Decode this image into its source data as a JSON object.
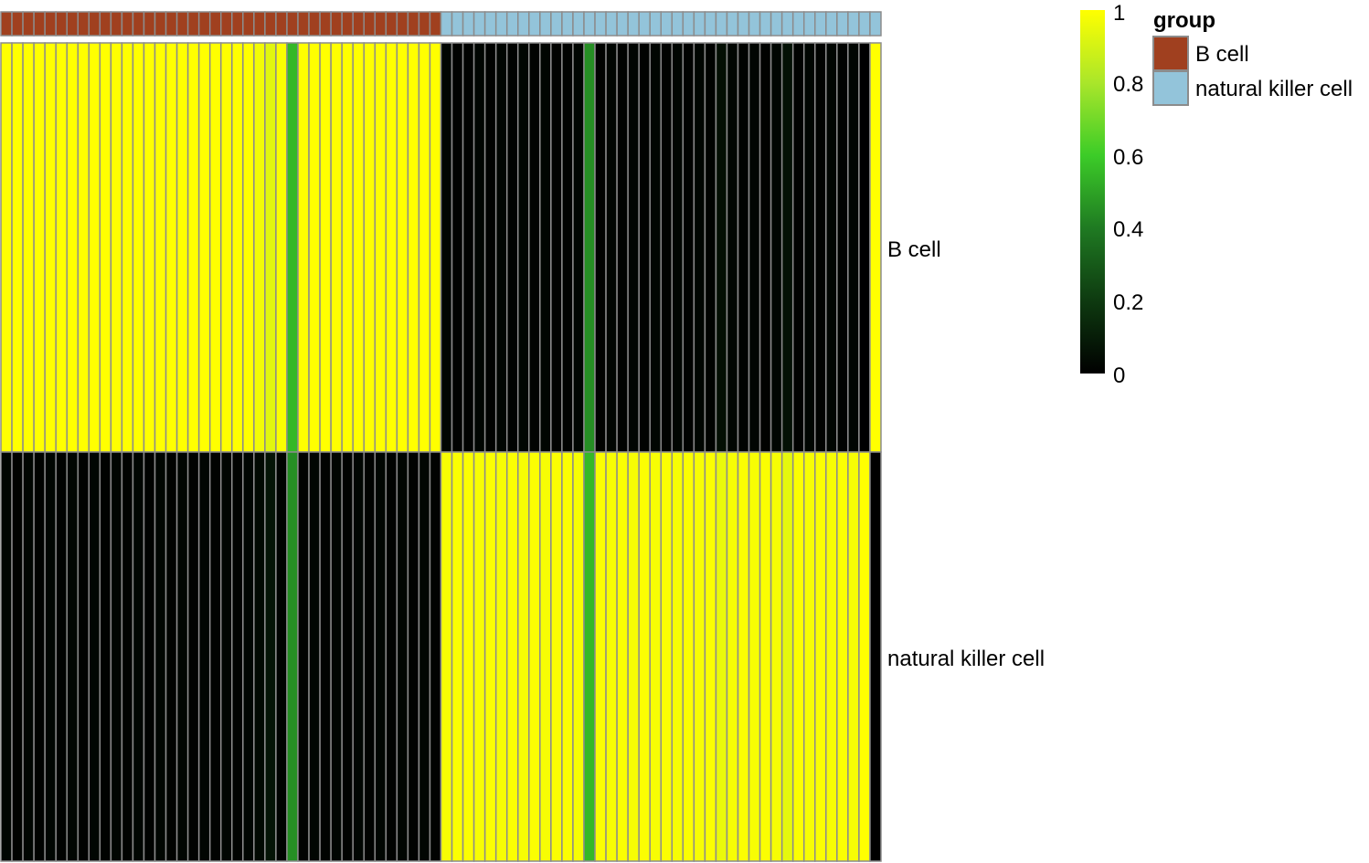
{
  "chart_data": {
    "type": "heatmap",
    "rows": [
      "B cell",
      "natural killer cell"
    ],
    "columns": {
      "count": 80,
      "group": [
        "B cell",
        "B cell",
        "B cell",
        "B cell",
        "B cell",
        "B cell",
        "B cell",
        "B cell",
        "B cell",
        "B cell",
        "B cell",
        "B cell",
        "B cell",
        "B cell",
        "B cell",
        "B cell",
        "B cell",
        "B cell",
        "B cell",
        "B cell",
        "B cell",
        "B cell",
        "B cell",
        "B cell",
        "B cell",
        "B cell",
        "B cell",
        "B cell",
        "B cell",
        "B cell",
        "B cell",
        "B cell",
        "B cell",
        "B cell",
        "B cell",
        "B cell",
        "B cell",
        "B cell",
        "B cell",
        "B cell",
        "natural killer cell",
        "natural killer cell",
        "natural killer cell",
        "natural killer cell",
        "natural killer cell",
        "natural killer cell",
        "natural killer cell",
        "natural killer cell",
        "natural killer cell",
        "natural killer cell",
        "natural killer cell",
        "natural killer cell",
        "natural killer cell",
        "natural killer cell",
        "natural killer cell",
        "natural killer cell",
        "natural killer cell",
        "natural killer cell",
        "natural killer cell",
        "natural killer cell",
        "natural killer cell",
        "natural killer cell",
        "natural killer cell",
        "natural killer cell",
        "natural killer cell",
        "natural killer cell",
        "natural killer cell",
        "natural killer cell",
        "natural killer cell",
        "natural killer cell",
        "natural killer cell",
        "natural killer cell",
        "natural killer cell",
        "natural killer cell",
        "natural killer cell",
        "natural killer cell",
        "natural killer cell",
        "natural killer cell",
        "natural killer cell",
        "natural killer cell"
      ]
    },
    "values": [
      [
        1,
        1,
        1,
        1,
        1,
        1,
        1,
        1,
        1,
        1,
        1,
        1,
        1,
        1,
        1,
        1,
        1,
        1,
        1,
        1,
        1,
        1,
        1,
        0.97,
        0.93,
        0.99,
        0.55,
        1,
        1,
        1,
        1,
        1,
        1,
        1,
        1,
        1,
        1,
        1,
        1,
        1,
        0.02,
        0.01,
        0.01,
        0.02,
        0.01,
        0.02,
        0.01,
        0.02,
        0.01,
        0.02,
        0.01,
        0.01,
        0.02,
        0.45,
        0.01,
        0.02,
        0.01,
        0.02,
        0.01,
        0.02,
        0.01,
        0.02,
        0.01,
        0.02,
        0.01,
        0.05,
        0.02,
        0.01,
        0.02,
        0.01,
        0.02,
        0.06,
        0.01,
        0.02,
        0.01,
        0.02,
        0.01,
        0.02,
        0,
        1
      ],
      [
        0.02,
        0.01,
        0.02,
        0.01,
        0.02,
        0.01,
        0.02,
        0.01,
        0.02,
        0.01,
        0.02,
        0.01,
        0.02,
        0.01,
        0.02,
        0.01,
        0.02,
        0.01,
        0.02,
        0.01,
        0.02,
        0.01,
        0.02,
        0.03,
        0.07,
        0.01,
        0.45,
        0.01,
        0.02,
        0.01,
        0.02,
        0.01,
        0.02,
        0.01,
        0.02,
        0.01,
        0.02,
        0.01,
        0.02,
        0.01,
        0.98,
        0.99,
        0.99,
        0.98,
        0.99,
        0.98,
        0.99,
        0.98,
        0.99,
        0.98,
        0.99,
        0.99,
        0.98,
        0.55,
        0.99,
        0.98,
        0.99,
        0.98,
        0.99,
        0.98,
        0.99,
        0.98,
        0.99,
        0.98,
        0.99,
        0.95,
        0.98,
        0.99,
        0.98,
        0.99,
        0.98,
        0.94,
        0.99,
        0.98,
        0.99,
        0.98,
        0.99,
        0.98,
        1,
        0
      ]
    ],
    "color_scale": {
      "stops": [
        {
          "value": 0,
          "color": "#000000"
        },
        {
          "value": 0.2,
          "color": "#0e3a10"
        },
        {
          "value": 0.4,
          "color": "#1f7a22"
        },
        {
          "value": 0.6,
          "color": "#3ccc28"
        },
        {
          "value": 0.8,
          "color": "#aae62a"
        },
        {
          "value": 1,
          "color": "#ffff00"
        }
      ],
      "ticks": [
        "1",
        "0.8",
        "0.6",
        "0.4",
        "0.2",
        "0"
      ]
    },
    "annotation_legend": {
      "title": "group",
      "items": [
        {
          "label": "B cell",
          "color": "#a0401f"
        },
        {
          "label": "natural killer cell",
          "color": "#93c4da"
        }
      ]
    },
    "cell_border_color": "#8c8c8c"
  }
}
